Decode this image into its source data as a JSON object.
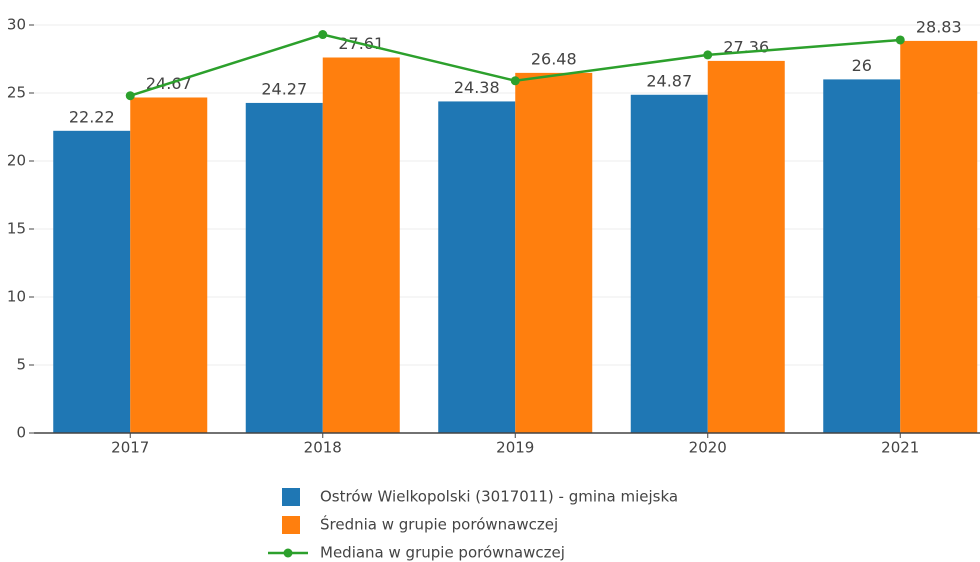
{
  "chart_data": {
    "type": "bar",
    "categories": [
      "2017",
      "2018",
      "2019",
      "2020",
      "2021"
    ],
    "series": [
      {
        "name": "Ostrów Wielkopolski (3017011) - gmina miejska",
        "color": "#1f77b4",
        "type": "bar",
        "values": [
          22.22,
          24.27,
          24.38,
          24.87,
          26
        ]
      },
      {
        "name": "Średnia w grupie porównawczej",
        "color": "#ff7f0e",
        "type": "bar",
        "values": [
          24.67,
          27.61,
          26.48,
          27.36,
          28.83
        ]
      },
      {
        "name": "Mediana w grupie porównawczej",
        "color": "#2ca02c",
        "type": "line",
        "values": [
          24.8,
          29.3,
          25.9,
          27.8,
          28.9
        ]
      }
    ],
    "ylim": [
      0,
      30
    ],
    "yticks": [
      0,
      5,
      10,
      15,
      20,
      25,
      30
    ],
    "grid": true
  }
}
